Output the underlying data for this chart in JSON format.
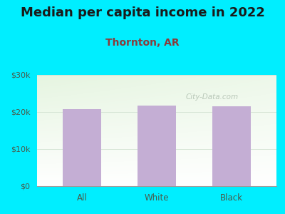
{
  "title": "Median per capita income in 2022",
  "subtitle": "Thornton, AR",
  "categories": [
    "All",
    "White",
    "Black"
  ],
  "values": [
    20800,
    21800,
    21600
  ],
  "bar_color": "#c4aed4",
  "title_fontsize": 13,
  "subtitle_fontsize": 10,
  "subtitle_color": "#8b3a3a",
  "title_color": "#1a1a1a",
  "tick_color": "#4a5a4a",
  "background_outer": "#00eeff",
  "ylim": [
    0,
    30000
  ],
  "yticks": [
    0,
    10000,
    20000,
    30000
  ],
  "ytick_labels": [
    "$0",
    "$10k",
    "$20k",
    "$30k"
  ],
  "watermark": "City-Data.com",
  "watermark_color": "#bbccbb"
}
